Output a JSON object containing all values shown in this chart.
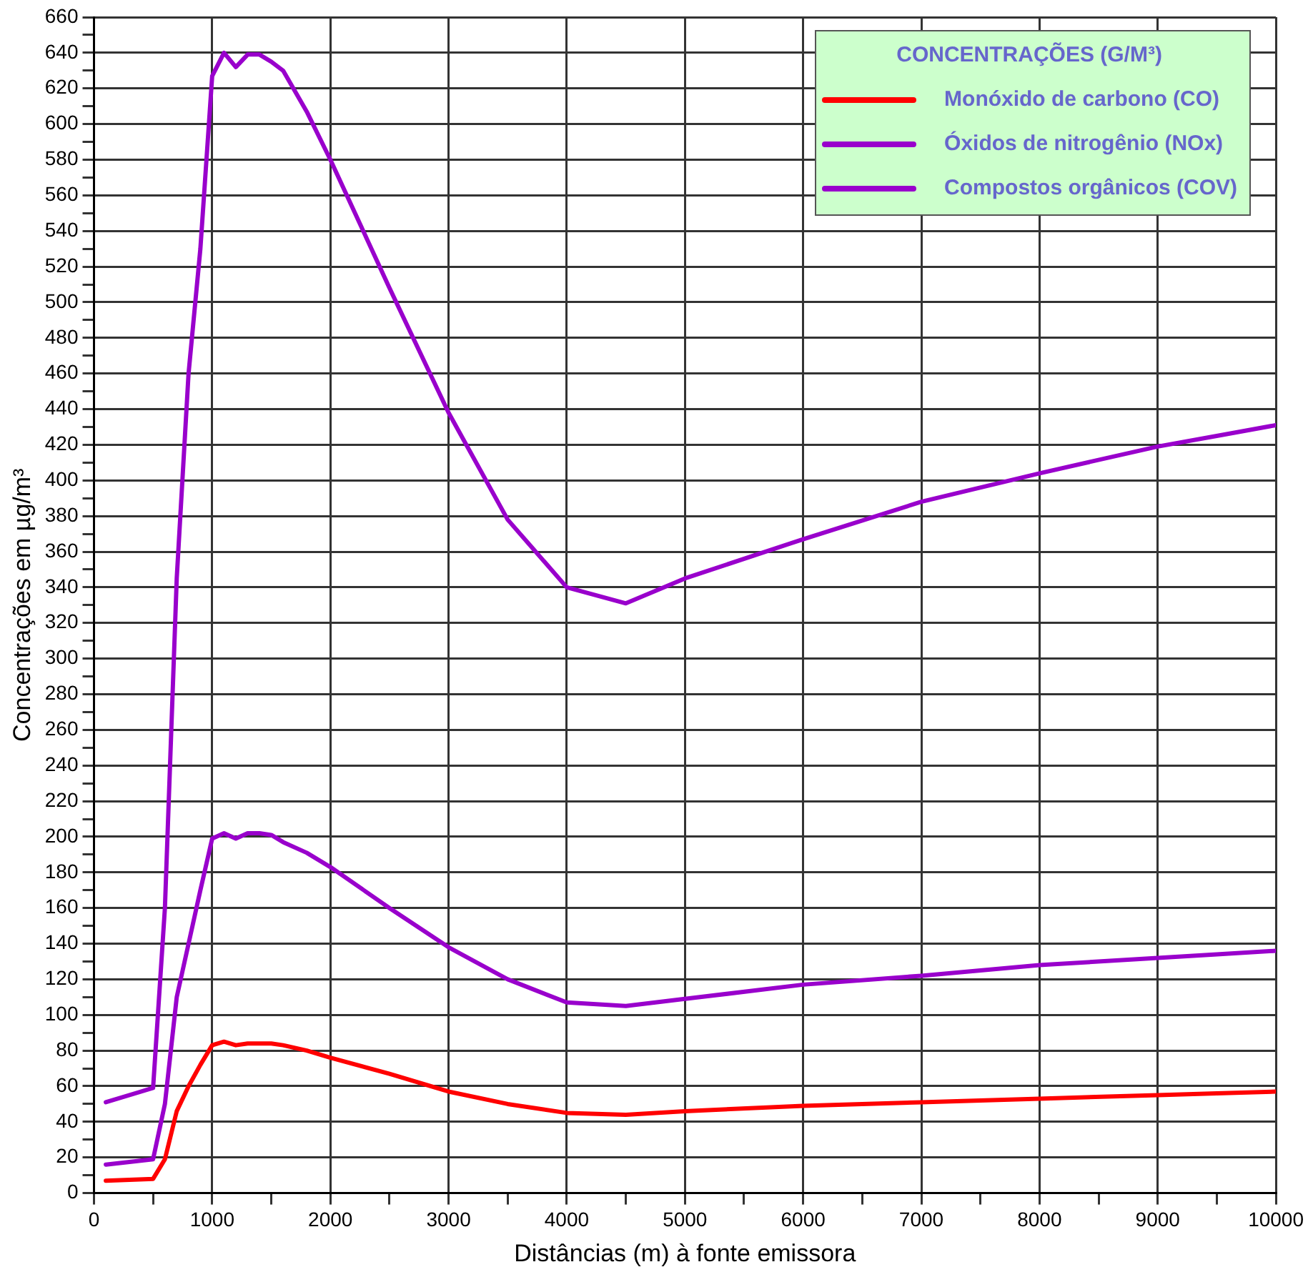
{
  "chart_data": {
    "type": "line",
    "xlabel": "Distâncias (m) à fonte emissora",
    "ylabel": "Concentrações em µg/m³",
    "legend_title": "CONCENTRAÇÕES (G/M³)",
    "x": [
      100,
      500,
      600,
      700,
      800,
      900,
      1000,
      1100,
      1200,
      1300,
      1400,
      1500,
      1600,
      1800,
      2000,
      2500,
      3000,
      3500,
      4000,
      4500,
      5000,
      6000,
      7000,
      8000,
      9000,
      9500,
      10000
    ],
    "series": [
      {
        "name": "Monóxido de carbono (CO)",
        "color": "#ff0000",
        "values": [
          7,
          8,
          19,
          46,
          60,
          72,
          83,
          85,
          83,
          84,
          84,
          84,
          83,
          80,
          76,
          67,
          57,
          50,
          45,
          44,
          46,
          49,
          51,
          53,
          55,
          56,
          57
        ]
      },
      {
        "name": "Óxidos de nitrogênio (NOx)",
        "color": "#9900cc",
        "values": [
          51,
          59,
          160,
          345,
          460,
          530,
          627,
          640,
          632,
          639,
          639,
          635,
          630,
          607,
          580,
          508,
          438,
          378,
          340,
          331,
          345,
          367,
          388,
          404,
          419,
          425,
          431
        ]
      },
      {
        "name": "Compostos orgânicos (COV)",
        "color": "#9900cc",
        "values": [
          16,
          19,
          50,
          110,
          140,
          170,
          199,
          202,
          199,
          202,
          202,
          201,
          197,
          191,
          183,
          160,
          138,
          120,
          107,
          105,
          109,
          117,
          122,
          128,
          132,
          134,
          136
        ]
      }
    ],
    "xlim": [
      0,
      10000
    ],
    "xticks": [
      0,
      {
        "value": 500,
        "label": null
      },
      1000,
      {
        "value": 1500,
        "label": null
      },
      2000,
      {
        "value": 2500,
        "label": null
      },
      3000,
      {
        "value": 3500,
        "label": null
      },
      4000,
      {
        "value": 4500,
        "label": null
      },
      5000,
      {
        "value": 5500,
        "label": null
      },
      6000,
      {
        "value": 6500,
        "label": null
      },
      7000,
      {
        "value": 7500,
        "label": null
      },
      8000,
      {
        "value": 8500,
        "label": null
      },
      9000,
      {
        "value": 9500,
        "label": null
      },
      10000
    ],
    "ylim": [
      0,
      660
    ],
    "yticks": [
      0,
      {
        "value": 10,
        "label": null
      },
      20,
      {
        "value": 30,
        "label": null
      },
      40,
      {
        "value": 50,
        "label": null
      },
      60,
      {
        "value": 70,
        "label": null
      },
      80,
      {
        "value": 90,
        "label": null
      },
      100,
      {
        "value": 110,
        "label": null
      },
      120,
      {
        "value": 130,
        "label": null
      },
      140,
      {
        "value": 150,
        "label": null
      },
      160,
      {
        "value": 170,
        "label": null
      },
      180,
      {
        "value": 190,
        "label": null
      },
      200,
      {
        "value": 210,
        "label": null
      },
      220,
      {
        "value": 230,
        "label": null
      },
      240,
      {
        "value": 250,
        "label": null
      },
      260,
      {
        "value": 270,
        "label": null
      },
      280,
      {
        "value": 290,
        "label": null
      },
      300,
      {
        "value": 310,
        "label": null
      },
      320,
      {
        "value": 330,
        "label": null
      },
      340,
      {
        "value": 350,
        "label": null
      },
      360,
      {
        "value": 370,
        "label": null
      },
      380,
      {
        "value": 390,
        "label": null
      },
      400,
      {
        "value": 410,
        "label": null
      },
      420,
      {
        "value": 430,
        "label": null
      },
      440,
      {
        "value": 450,
        "label": null
      },
      460,
      {
        "value": 470,
        "label": null
      },
      480,
      {
        "value": 490,
        "label": null
      },
      500,
      {
        "value": 510,
        "label": null
      },
      520,
      {
        "value": 530,
        "label": null
      },
      540,
      {
        "value": 550,
        "label": null
      },
      560,
      {
        "value": 570,
        "label": null
      },
      580,
      {
        "value": 590,
        "label": null
      },
      600,
      {
        "value": 610,
        "label": null
      },
      620,
      {
        "value": 630,
        "label": null
      },
      640,
      {
        "value": 650,
        "label": null
      },
      660
    ],
    "grid": true,
    "legend": "top right",
    "marker": "none",
    "line_style": "solid"
  }
}
